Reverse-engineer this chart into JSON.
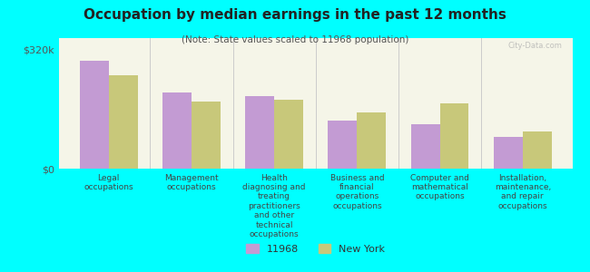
{
  "title": "Occupation by median earnings in the past 12 months",
  "subtitle": "(Note: State values scaled to 11968 population)",
  "background_color": "#00FFFF",
  "plot_bg_color": "#f5f5e8",
  "categories": [
    "Legal\noccupations",
    "Management\noccupations",
    "Health\ndiagnosing and\ntreating\npractitioners\nand other\ntechnical\noccupations",
    "Business and\nfinancial\noperations\noccupations",
    "Computer and\nmathematical\noccupations",
    "Installation,\nmaintenance,\nand repair\noccupations"
  ],
  "values_11968": [
    290000,
    205000,
    195000,
    130000,
    120000,
    85000
  ],
  "values_ny": [
    250000,
    180000,
    185000,
    150000,
    175000,
    100000
  ],
  "color_11968": "#c39bd3",
  "color_ny": "#c8c87a",
  "bar_width": 0.35,
  "ylim": [
    0,
    350000
  ],
  "yticks": [
    0,
    320000
  ],
  "ytick_labels": [
    "$0",
    "$320k"
  ],
  "legend_label_11968": "11968",
  "legend_label_ny": "New York",
  "watermark": "City-Data.com"
}
